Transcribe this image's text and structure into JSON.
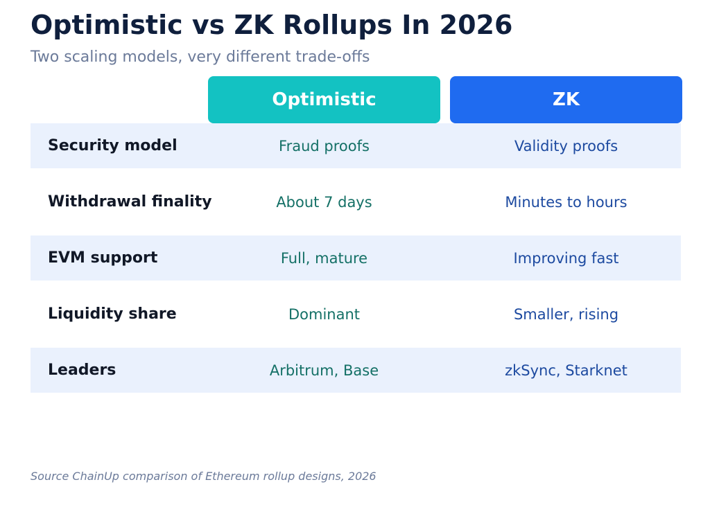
{
  "title": "Optimistic vs ZK Rollups In 2026",
  "subtitle": "Two scaling models, very different trade-offs",
  "source": "Source ChainUp comparison of Ethereum rollup designs, 2026",
  "colors": {
    "optimistic_header": "#13c2c2",
    "zk_header": "#1f6bf0",
    "row_shade": "#eaf1fd",
    "optimistic_text": "#147066",
    "zk_text": "#1d4aa0"
  },
  "chart_data": {
    "type": "table",
    "columns": [
      "Optimistic",
      "ZK"
    ],
    "rows": [
      {
        "label": "Security model",
        "optimistic": "Fraud proofs",
        "zk": "Validity proofs"
      },
      {
        "label": "Withdrawal finality",
        "optimistic": "About 7 days",
        "zk": "Minutes to hours"
      },
      {
        "label": "EVM support",
        "optimistic": "Full, mature",
        "zk": "Improving fast"
      },
      {
        "label": "Liquidity share",
        "optimistic": "Dominant",
        "zk": "Smaller, rising"
      },
      {
        "label": "Leaders",
        "optimistic": "Arbitrum, Base",
        "zk": "zkSync, Starknet"
      }
    ]
  }
}
